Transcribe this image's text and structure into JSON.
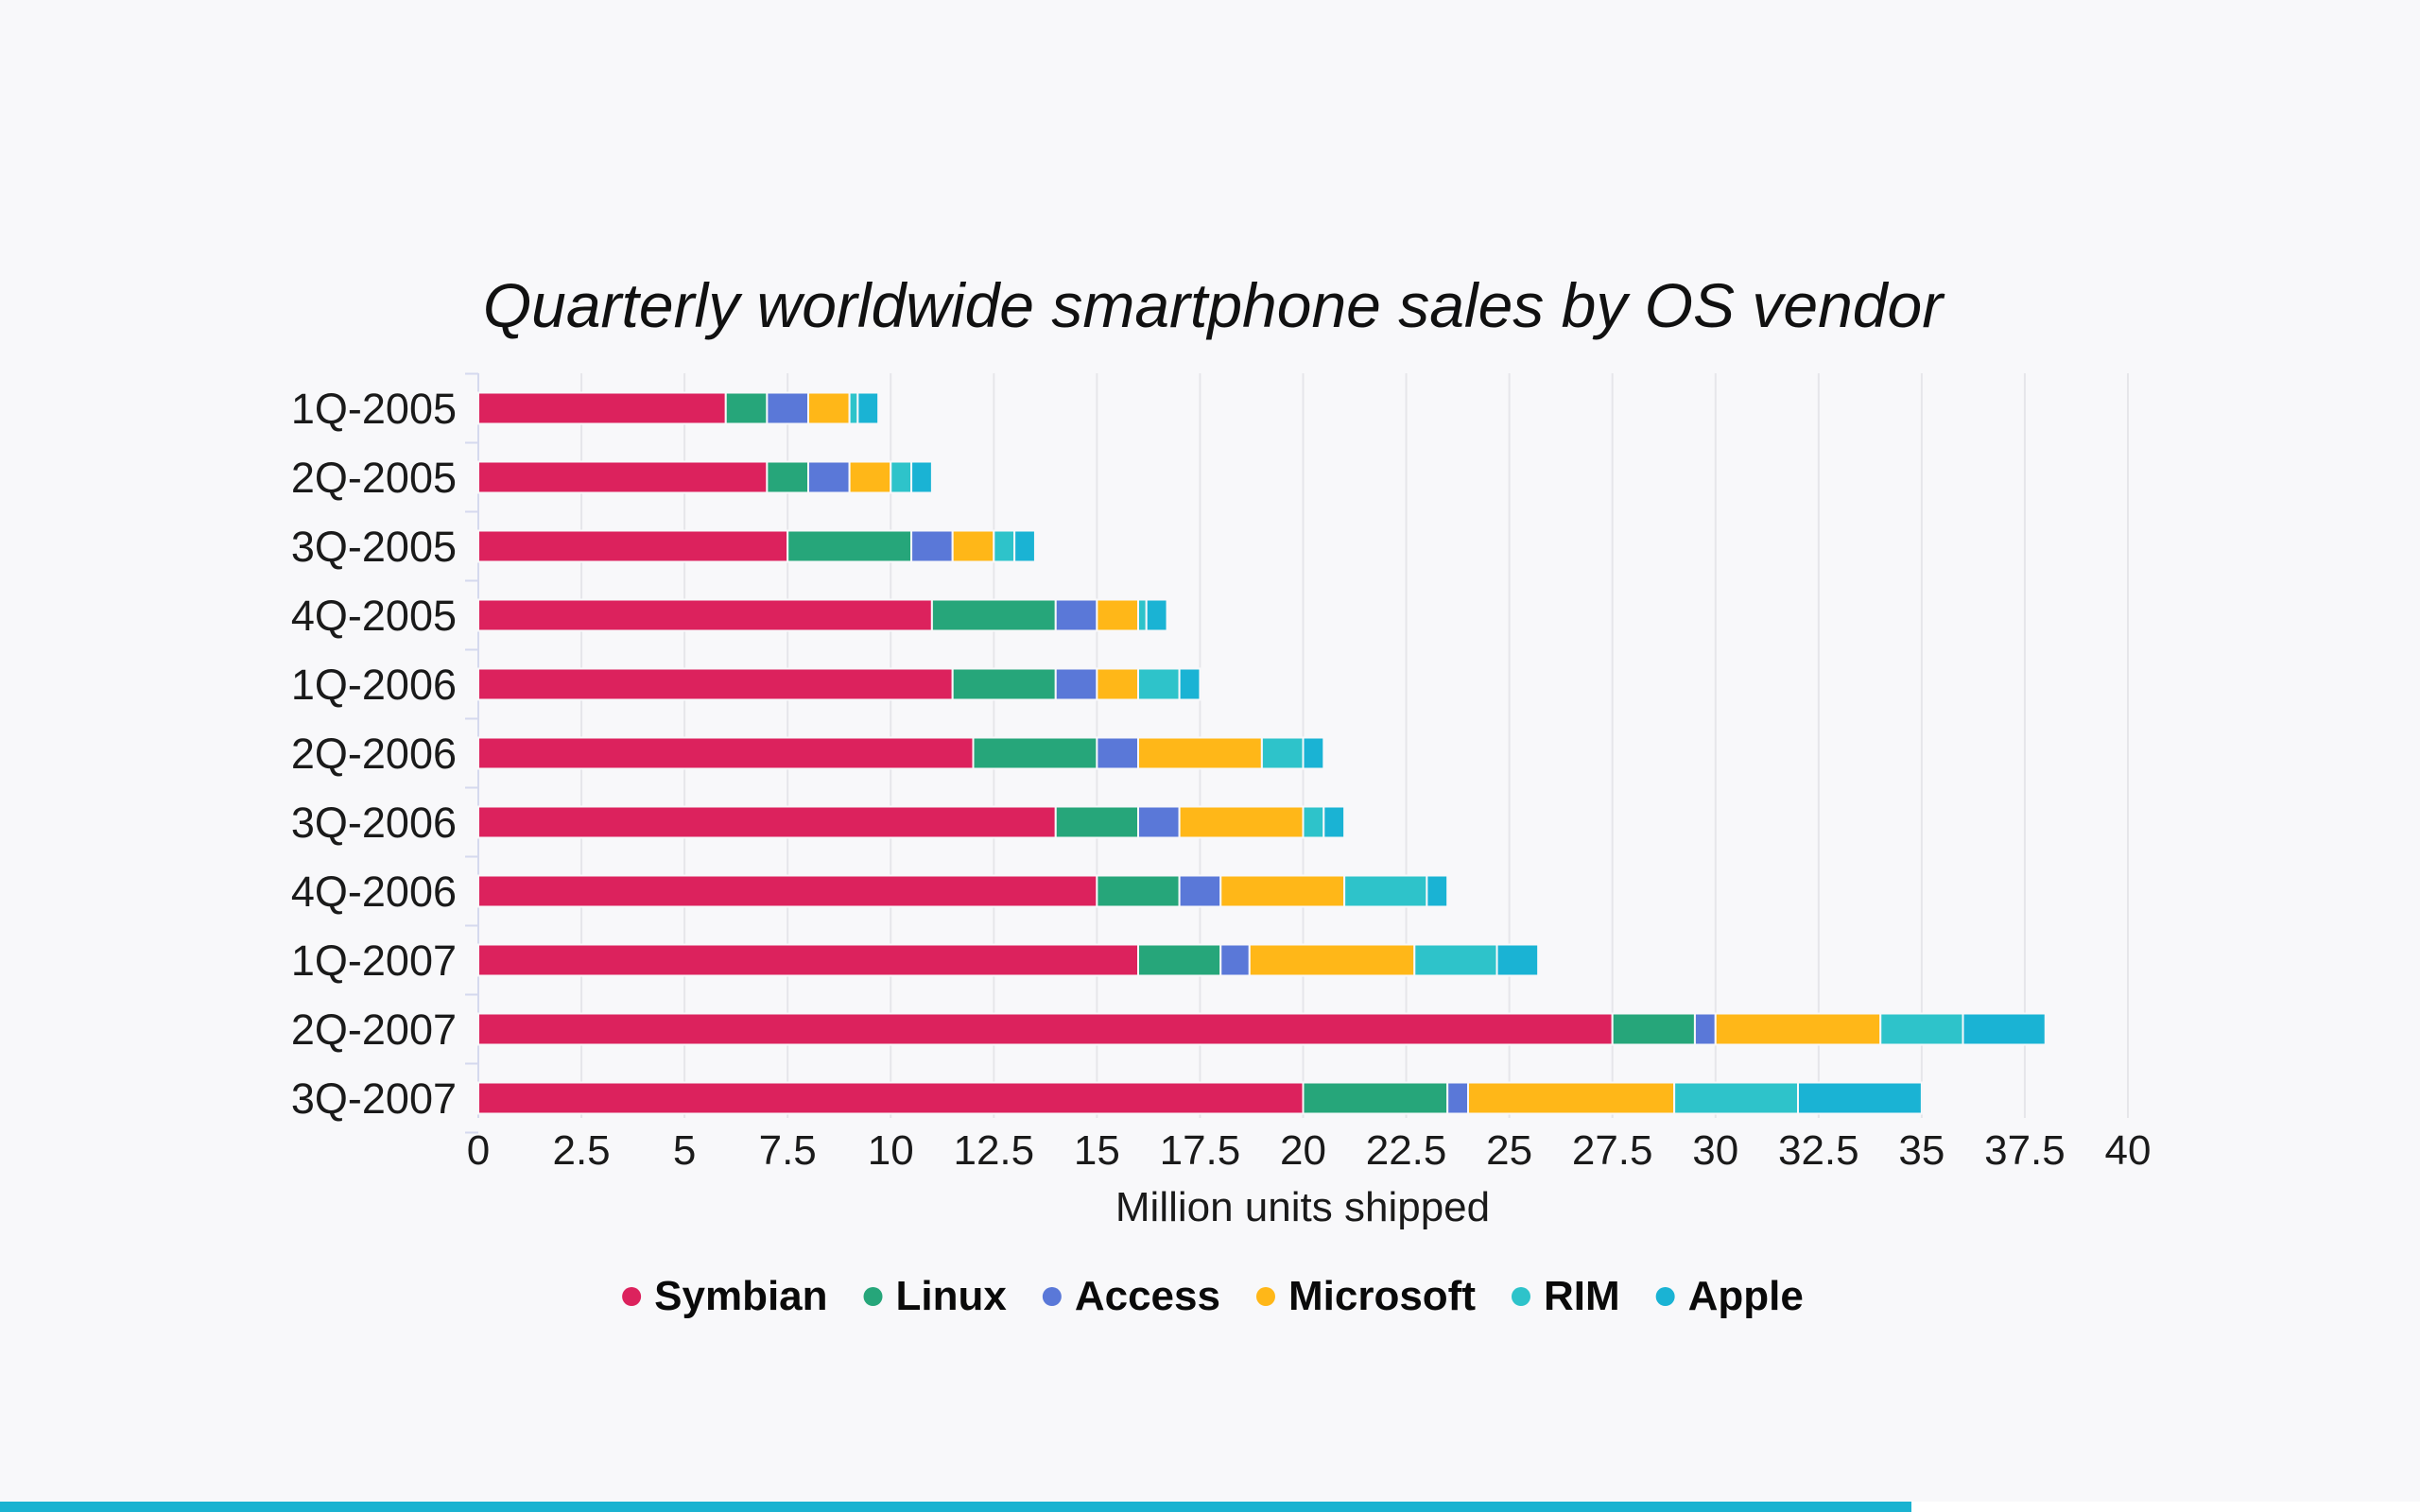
{
  "chart_data": {
    "type": "bar",
    "orientation": "horizontal",
    "stacked": true,
    "title": "Quarterly worldwide smartphone sales by OS vendor",
    "xlabel": "Million units shipped",
    "ylabel": "",
    "xlim": [
      0,
      40
    ],
    "x_ticks": [
      "0",
      "2.5",
      "5",
      "7.5",
      "10",
      "12.5",
      "15",
      "17.5",
      "20",
      "22.5",
      "25",
      "27.5",
      "30",
      "32.5",
      "35",
      "37.5",
      "40"
    ],
    "x_tick_values": [
      0,
      2.5,
      5,
      7.5,
      10,
      12.5,
      15,
      17.5,
      20,
      22.5,
      25,
      27.5,
      30,
      32.5,
      35,
      37.5,
      40
    ],
    "grid": true,
    "legend_position": "bottom-center",
    "categories": [
      "1Q-2005",
      "2Q-2005",
      "3Q-2005",
      "4Q-2005",
      "1Q-2006",
      "2Q-2006",
      "3Q-2006",
      "4Q-2006",
      "1Q-2007",
      "2Q-2007",
      "3Q-2007"
    ],
    "series": [
      {
        "name": "Symbian",
        "color": "#dc225d",
        "values": [
          6,
          7,
          7.5,
          11,
          11.5,
          12,
          14,
          15,
          16,
          27.5,
          20
        ]
      },
      {
        "name": "Linux",
        "color": "#26a67a",
        "values": [
          1,
          1,
          3,
          3,
          2.5,
          3,
          2,
          2,
          2,
          2,
          3.5
        ]
      },
      {
        "name": "Access",
        "color": "#5a78d8",
        "values": [
          1,
          1,
          1,
          1,
          1,
          1,
          1,
          1,
          0.7,
          0.5,
          0.5
        ]
      },
      {
        "name": "Microsoft",
        "color": "#ffb718",
        "values": [
          1,
          1,
          1,
          1,
          1,
          3,
          3,
          3,
          4,
          4,
          5
        ]
      },
      {
        "name": "RIM",
        "color": "#2ec3ca",
        "values": [
          0.2,
          0.5,
          0.5,
          0.2,
          1,
          1,
          0.5,
          2,
          2,
          2,
          3
        ]
      },
      {
        "name": "Apple",
        "color": "#1ab3d4",
        "values": [
          0.5,
          0.5,
          0.5,
          0.5,
          0.5,
          0.5,
          0.5,
          0.5,
          1,
          2,
          3
        ]
      }
    ]
  },
  "page_progress": {
    "label": "page-progress",
    "fraction": 0.79,
    "color": "#1ab3d1"
  }
}
